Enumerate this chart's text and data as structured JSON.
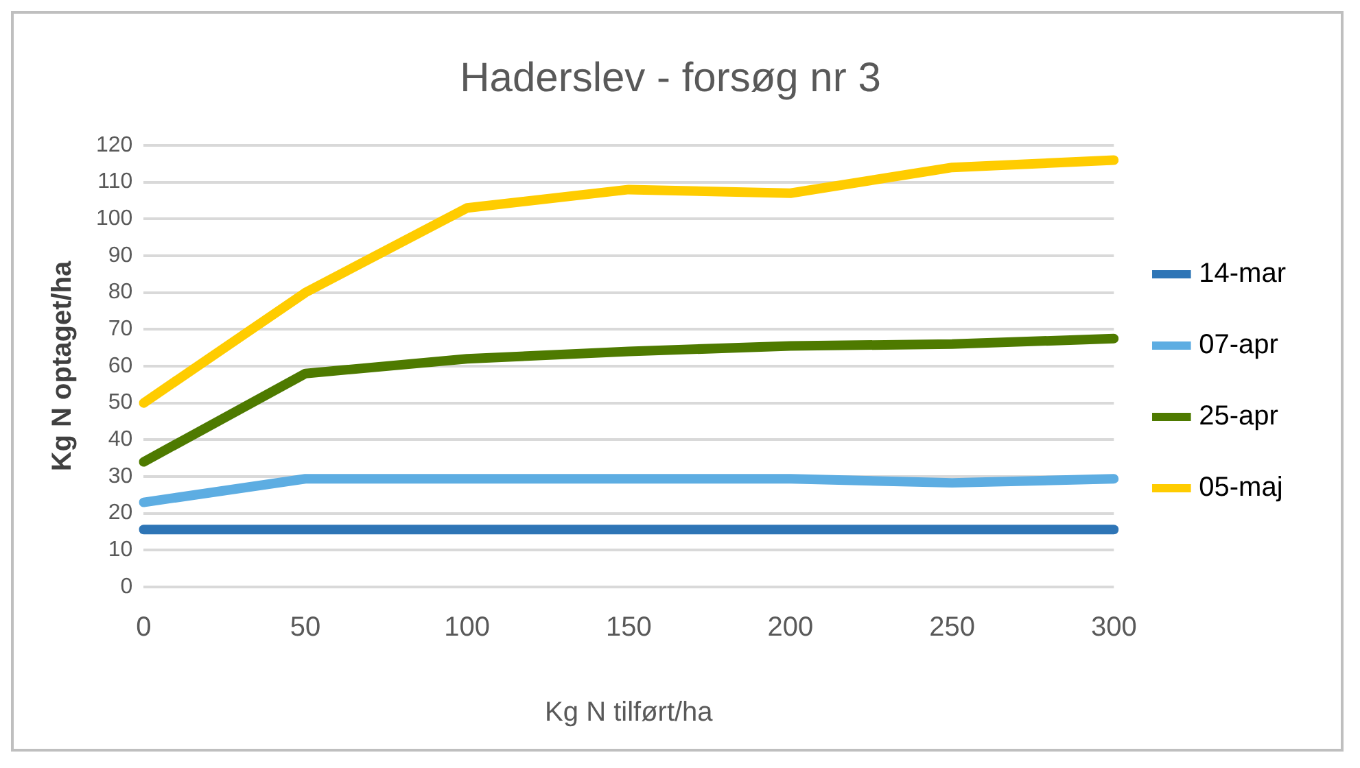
{
  "chart_data": {
    "type": "line",
    "title": "Haderslev - forsøg nr 3",
    "xlabel": "Kg N tilført/ha",
    "ylabel": "Kg N optaget/ha",
    "categories": [
      "0",
      "50",
      "100",
      "150",
      "200",
      "250",
      "300"
    ],
    "series": [
      {
        "name": "14-mar",
        "color": "#2e75b6",
        "values": [
          15.6,
          15.6,
          15.6,
          15.6,
          15.6,
          15.6,
          15.6
        ]
      },
      {
        "name": "07-apr",
        "color": "#5dade2",
        "values": [
          23,
          29.4,
          29.4,
          29.4,
          29.4,
          28.3,
          29.4
        ]
      },
      {
        "name": "25-apr",
        "color": "#4e7a00",
        "values": [
          34,
          58,
          62,
          64,
          65.5,
          66,
          67.5
        ]
      },
      {
        "name": "05-maj",
        "color": "#ffcc00",
        "values": [
          50,
          80,
          103,
          108,
          107,
          114,
          116
        ]
      }
    ],
    "ylim": [
      0,
      120
    ],
    "yticks": [
      0,
      10,
      20,
      30,
      40,
      50,
      60,
      70,
      80,
      90,
      100,
      110,
      120
    ],
    "grid": "y",
    "legend": "right",
    "marker": "none",
    "line_style": "solid"
  }
}
